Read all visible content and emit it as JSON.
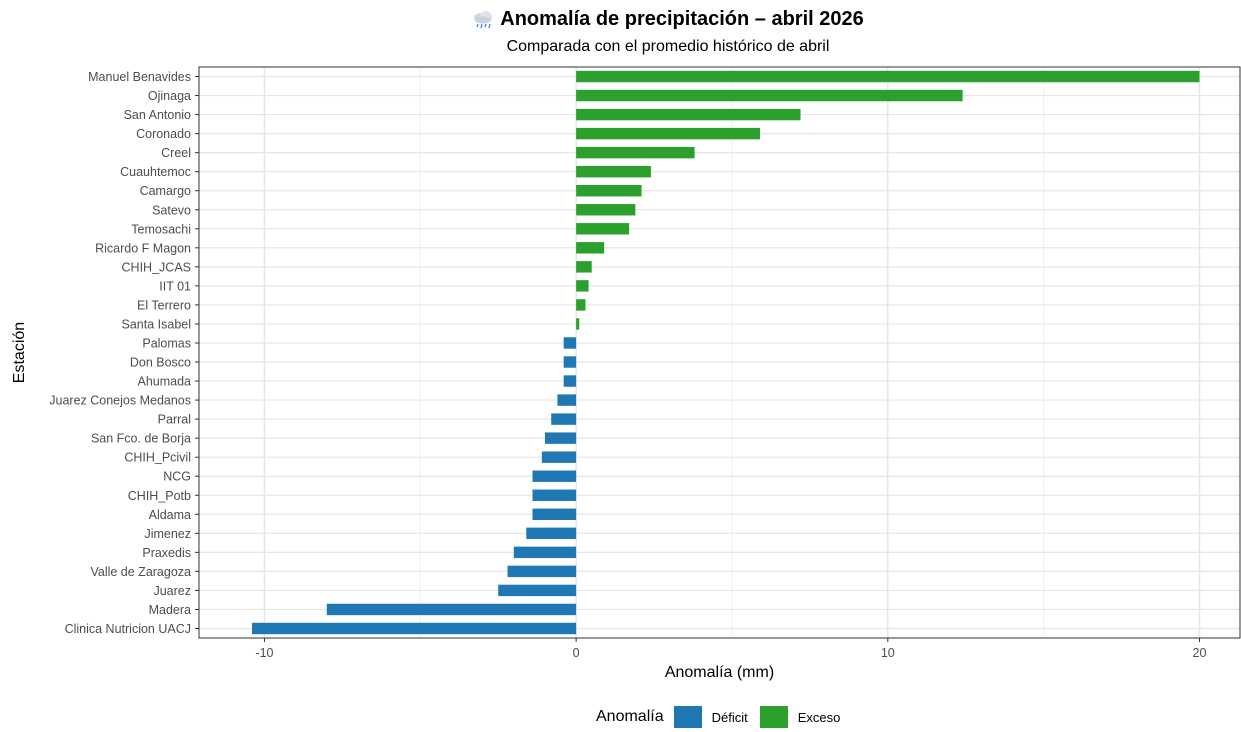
{
  "chart_data": {
    "type": "bar",
    "orientation": "horizontal",
    "title": "Anomalía de precipitación – abril 2026",
    "title_icon": "cloud-rain-icon",
    "subtitle": "Comparada con el promedio histórico de abril",
    "xlabel": "Anomalía (mm)",
    "ylabel": "Estación",
    "xlim": [
      -12.1,
      21.3
    ],
    "xticks": [
      -10,
      0,
      10,
      20
    ],
    "grid": true,
    "legend": {
      "title": "Anomalía",
      "placement": "bottom",
      "entries": [
        {
          "label": "Déficit",
          "color": "#1f77b4"
        },
        {
          "label": "Exceso",
          "color": "#2ca02c"
        }
      ]
    },
    "categories": [
      "Manuel Benavides",
      "Ojinaga",
      "San Antonio",
      "Coronado",
      "Creel",
      "Cuauhtemoc",
      "Camargo",
      "Satevo",
      "Temosachi",
      "Ricardo F Magon",
      "CHIH_JCAS",
      "IIT 01",
      "El Terrero",
      "Santa Isabel",
      "Palomas",
      "Don Bosco",
      "Ahumada",
      "Juarez Conejos Medanos",
      "Parral",
      "San Fco. de Borja",
      "CHIH_Pcivil",
      "NCG",
      "CHIH_Potb",
      "Aldama",
      "Jimenez",
      "Praxedis",
      "Valle de Zaragoza",
      "Juarez",
      "Madera",
      "Clinica Nutricion UACJ"
    ],
    "values": [
      20.0,
      12.4,
      7.2,
      5.9,
      3.8,
      2.4,
      2.1,
      1.9,
      1.7,
      0.9,
      0.5,
      0.4,
      0.3,
      0.1,
      -0.4,
      -0.4,
      -0.4,
      -0.6,
      -0.8,
      -1.0,
      -1.1,
      -1.4,
      -1.4,
      -1.4,
      -1.6,
      -2.0,
      -2.2,
      -2.5,
      -8.0,
      -10.4
    ],
    "colors": {
      "positive": "#2ca02c",
      "negative": "#1f77b4"
    }
  }
}
